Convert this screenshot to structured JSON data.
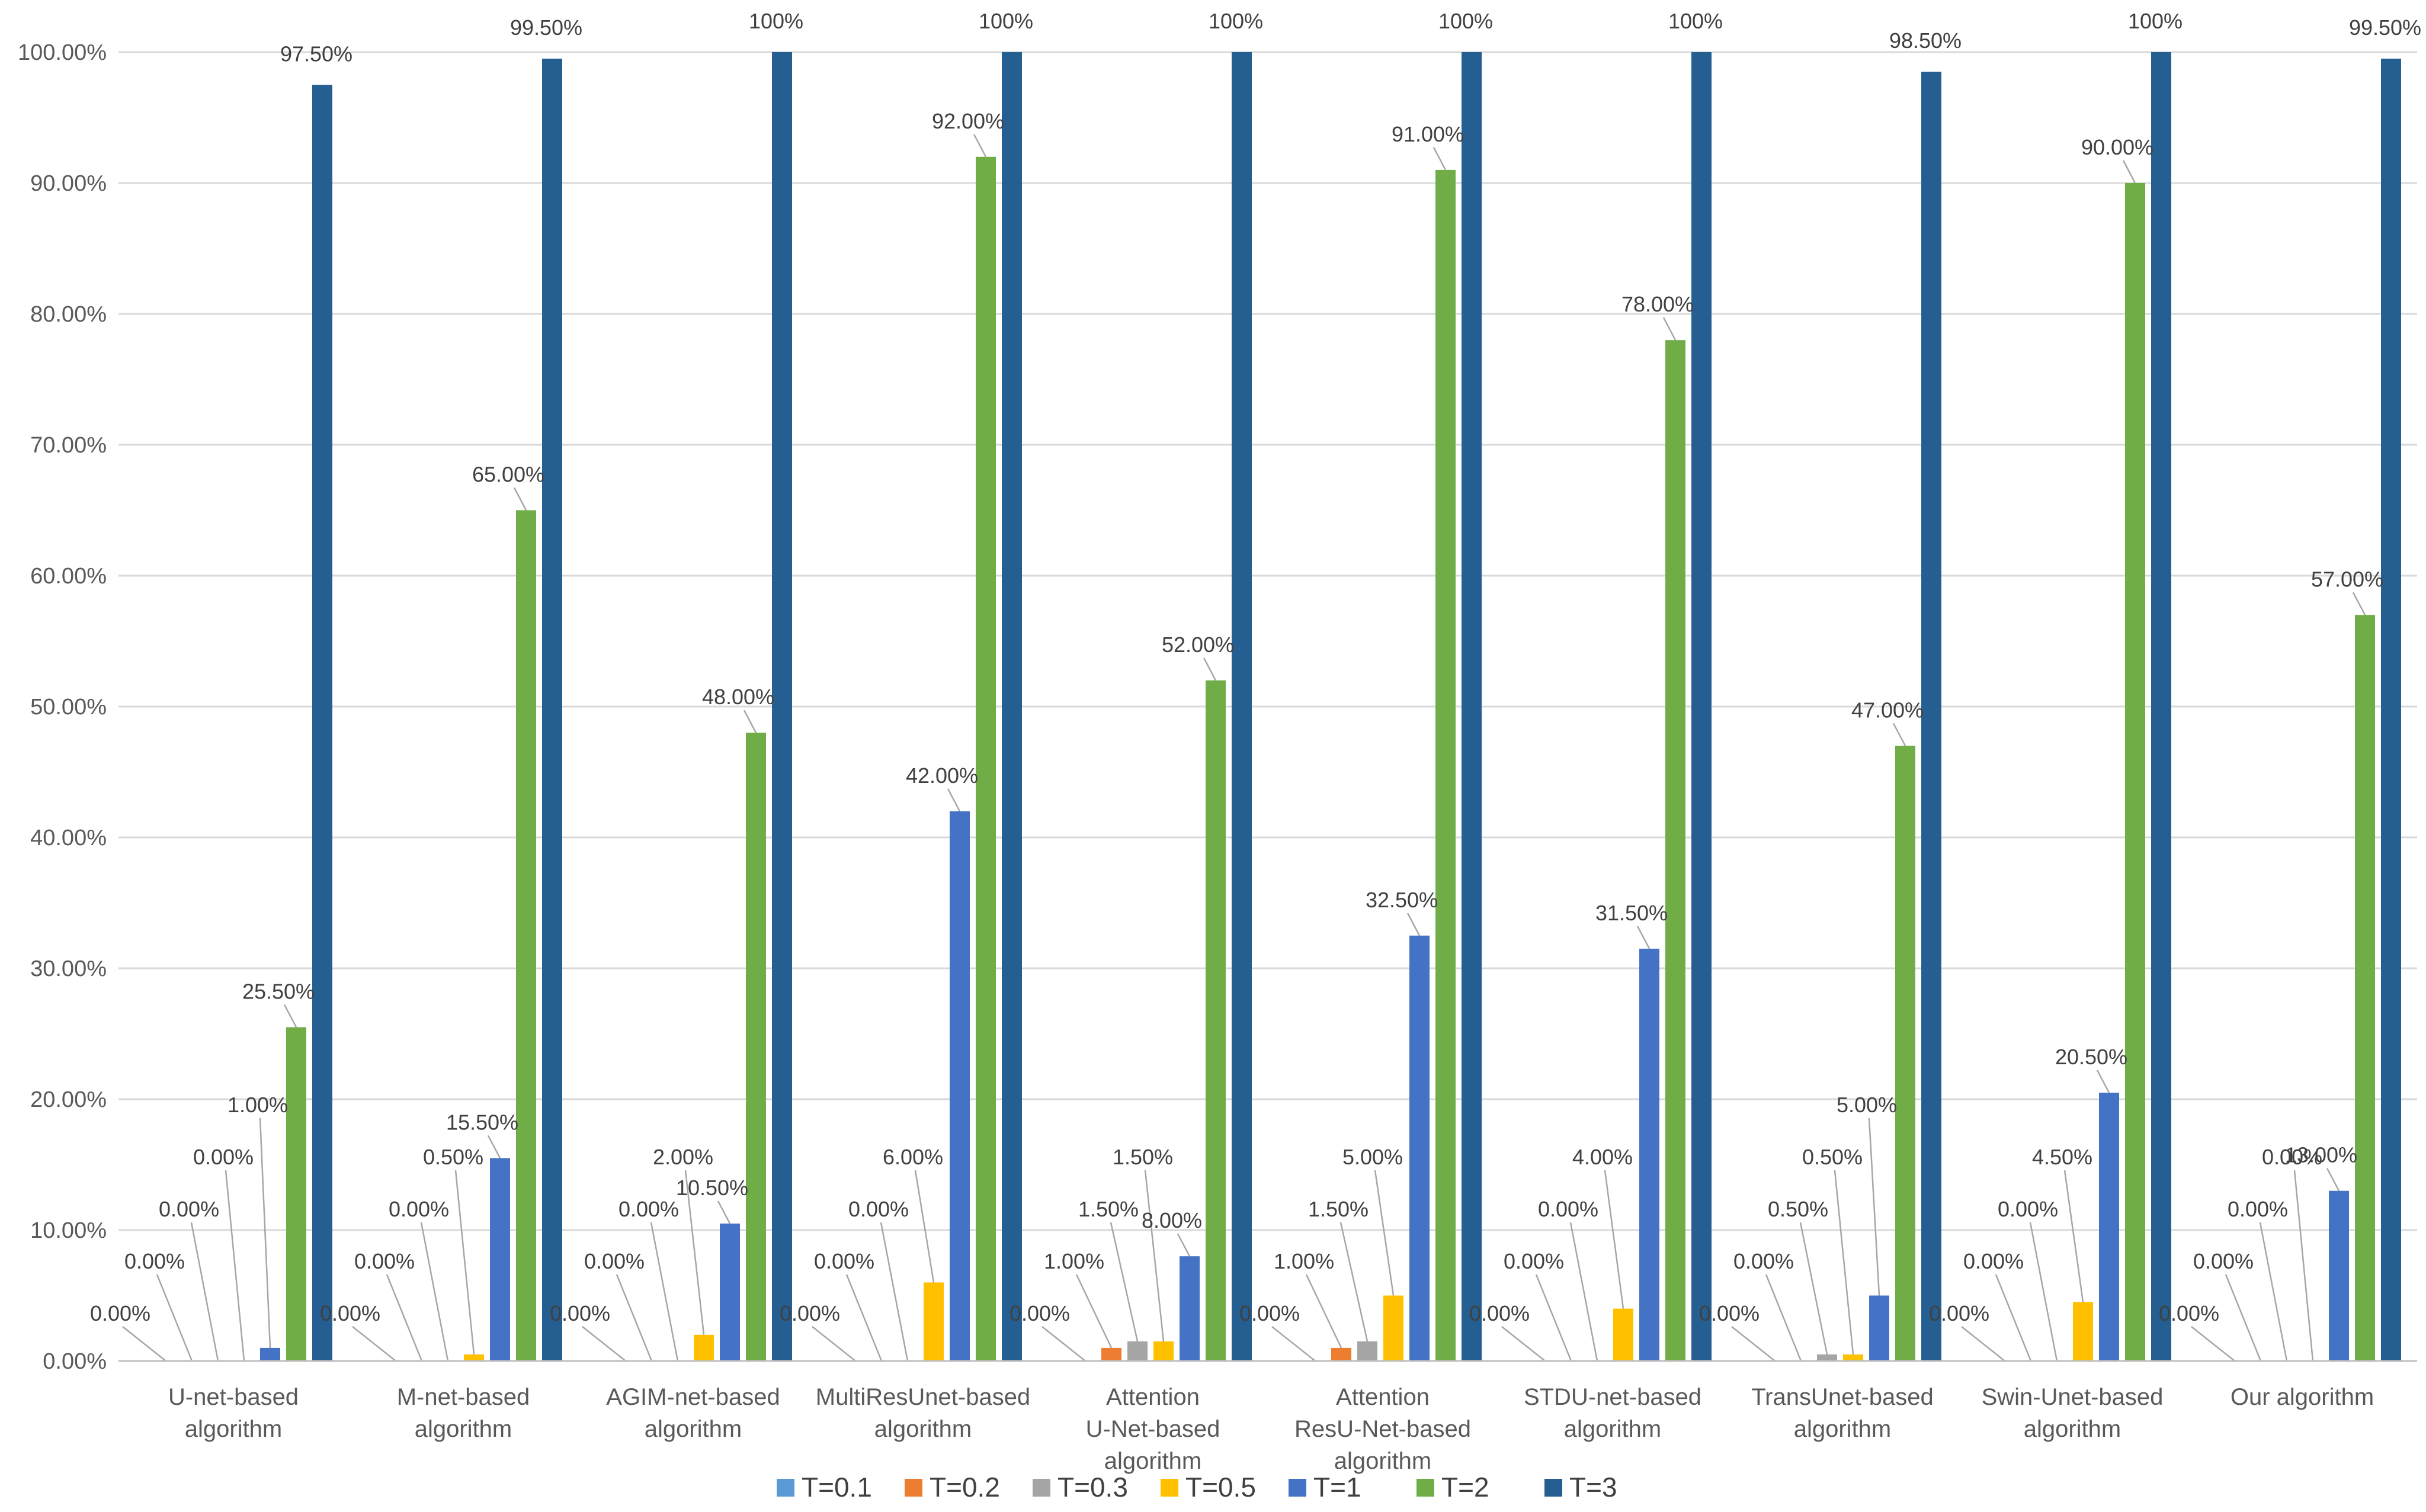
{
  "chart_data": {
    "type": "bar",
    "title": "",
    "xlabel": "",
    "ylabel": "",
    "ylim": [
      0,
      100
    ],
    "y_ticks": [
      "0.00%",
      "10.00%",
      "20.00%",
      "30.00%",
      "40.00%",
      "50.00%",
      "60.00%",
      "70.00%",
      "80.00%",
      "90.00%",
      "100.00%"
    ],
    "grid": true,
    "legend_position": "bottom",
    "categories": [
      [
        "U-net-based",
        "algorithm"
      ],
      [
        "M-net-based",
        "algorithm"
      ],
      [
        "AGIM-net-based",
        "algorithm"
      ],
      [
        "MultiResUnet-based",
        "algorithm"
      ],
      [
        "Attention",
        "U-Net-based",
        "algorithm"
      ],
      [
        "Attention",
        "ResU-Net-based",
        "algorithm"
      ],
      [
        "STDU-net-based",
        "algorithm"
      ],
      [
        "TransUnet-based",
        "algorithm"
      ],
      [
        "Swin-Unet-based",
        "algorithm"
      ],
      [
        "Our algorithm"
      ]
    ],
    "series": [
      {
        "name": "T=0.1",
        "color": "#5b9bd5",
        "values": [
          0,
          0,
          0,
          0,
          0,
          0,
          0,
          0,
          0,
          0
        ],
        "labels": [
          "0.00%",
          "0.00%",
          "0.00%",
          "0.00%",
          "0.00%",
          "0.00%",
          "0.00%",
          "0.00%",
          "0.00%",
          "0.00%"
        ]
      },
      {
        "name": "T=0.2",
        "color": "#ed7d31",
        "values": [
          0,
          0,
          0,
          0,
          1.0,
          1.0,
          0,
          0,
          0,
          0
        ],
        "labels": [
          "0.00%",
          "0.00%",
          "0.00%",
          "0.00%",
          "1.00%",
          "1.00%",
          "0.00%",
          "0.00%",
          "0.00%",
          "0.00%"
        ]
      },
      {
        "name": "T=0.3",
        "color": "#a5a5a5",
        "values": [
          0,
          0,
          0,
          0,
          1.5,
          1.5,
          0,
          0.5,
          0,
          0
        ],
        "labels": [
          "0.00%",
          "0.00%",
          "0.00%",
          "0.00%",
          "1.50%",
          "1.50%",
          "0.00%",
          "0.50%",
          "0.00%",
          "0.00%"
        ]
      },
      {
        "name": "T=0.5",
        "color": "#ffc000",
        "values": [
          0,
          0.5,
          2.0,
          6.0,
          1.5,
          5.0,
          4.0,
          0.5,
          4.5,
          0
        ],
        "labels": [
          "0.00%",
          "0.50%",
          "2.00%",
          "6.00%",
          "1.50%",
          "5.00%",
          "4.00%",
          "0.50%",
          "4.50%",
          "0.00%"
        ]
      },
      {
        "name": "T=1",
        "color": "#4472c4",
        "values": [
          1.0,
          15.5,
          10.5,
          42.0,
          8.0,
          32.5,
          31.5,
          5.0,
          20.5,
          13.0
        ],
        "labels": [
          "1.00%",
          "15.50%",
          "10.50%",
          "42.00%",
          "8.00%",
          "32.50%",
          "31.50%",
          "5.00%",
          "20.50%",
          "13.00%"
        ]
      },
      {
        "name": "T=2",
        "color": "#70ad47",
        "values": [
          25.5,
          65.0,
          48.0,
          92.0,
          52.0,
          91.0,
          78.0,
          47.0,
          90.0,
          57.0
        ],
        "labels": [
          "25.50%",
          "65.00%",
          "48.00%",
          "92.00%",
          "52.00%",
          "91.00%",
          "78.00%",
          "47.00%",
          "90.00%",
          "57.00%"
        ]
      },
      {
        "name": "T=3",
        "color": "#255e91",
        "values": [
          97.5,
          99.5,
          100,
          100,
          100,
          100,
          100,
          98.5,
          100,
          99.5
        ],
        "labels": [
          "97.50%",
          "99.50%",
          "100%",
          "100%",
          "100%",
          "100%",
          "100%",
          "98.50%",
          "100%",
          "99.50%"
        ]
      }
    ]
  }
}
